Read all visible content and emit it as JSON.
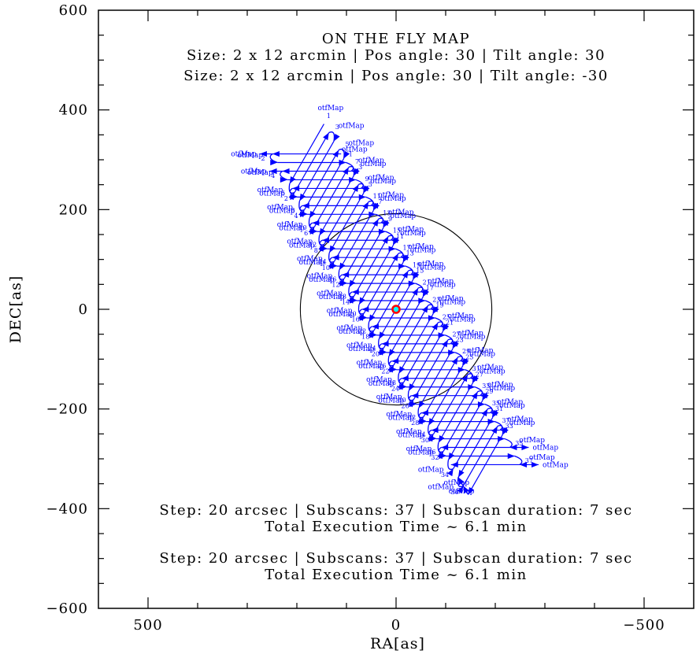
{
  "header": {
    "title": "ON THE FLY MAP",
    "config_lines": [
      "Size: 2 x 12 arcmin | Pos angle: 30 | Tilt angle: 30",
      "Size: 2 x 12 arcmin | Pos angle: 30 | Tilt angle: -30"
    ]
  },
  "footer": {
    "blocks": [
      {
        "line1": "Step: 20 arcsec | Subscans: 37 | Subscan duration: 7 sec",
        "line2": "Total Execution Time ~ 6.1 min"
      },
      {
        "line1": "Step: 20 arcsec | Subscans: 37 | Subscan duration: 7 sec",
        "line2": "Total Execution Time ~ 6.1 min"
      }
    ]
  },
  "axes": {
    "xlabel": "RA[as]",
    "ylabel": "DEC[as]"
  },
  "chart_data": {
    "type": "line",
    "title": "ON THE FLY MAP",
    "xlabel": "RA[as]",
    "ylabel": "DEC[as]",
    "xlim": [
      600,
      -600
    ],
    "ylim": [
      -600,
      600
    ],
    "x_major_ticks": [
      500,
      0,
      -500
    ],
    "y_major_ticks": [
      600,
      400,
      200,
      0,
      -200,
      -400,
      -600
    ],
    "x_minor_step_as": 100,
    "y_minor_step_as": 50,
    "grid": "off",
    "scan_label": "otfMap",
    "maps": [
      {
        "name": "otfMap",
        "size_arcmin": [
          2,
          12
        ],
        "pos_angle_deg": 30,
        "tilt_angle_deg": 30,
        "step_arcsec": 20,
        "subscans": 37,
        "subscan_duration_sec": 7,
        "total_execution_time_min": 6.1,
        "scan_direction_pos_angle_deg": 150
      },
      {
        "name": "otfMap",
        "size_arcmin": [
          2,
          12
        ],
        "pos_angle_deg": 30,
        "tilt_angle_deg": -30,
        "step_arcsec": 20,
        "subscans": 37,
        "subscan_duration_sec": 7,
        "total_execution_time_min": 6.1,
        "scan_direction_pos_angle_deg": 90
      }
    ],
    "beam_circle": {
      "center_as": [
        0,
        0
      ],
      "radius_as": 192
    },
    "center_marker": {
      "position_as": [
        0,
        0
      ],
      "fill": "#00ffff",
      "edge": "#ff0000"
    },
    "colors": {
      "scan": "#0000ff",
      "frame": "#000000",
      "background": "#ffffff"
    }
  }
}
